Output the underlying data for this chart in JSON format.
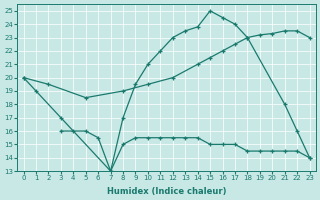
{
  "xlabel": "Humidex (Indice chaleur)",
  "xlim": [
    -0.5,
    23.5
  ],
  "ylim": [
    13,
    25.5
  ],
  "yticks": [
    13,
    14,
    15,
    16,
    17,
    18,
    19,
    20,
    21,
    22,
    23,
    24,
    25
  ],
  "xticks": [
    0,
    1,
    2,
    3,
    4,
    5,
    6,
    7,
    8,
    9,
    10,
    11,
    12,
    13,
    14,
    15,
    16,
    17,
    18,
    19,
    20,
    21,
    22,
    23
  ],
  "bg_color": "#c8e8e5",
  "grid_color": "#ffffff",
  "line_color": "#1a7a6e",
  "line1_x": [
    0,
    1,
    3,
    7,
    8,
    9,
    10,
    11,
    12,
    13,
    14,
    15,
    16,
    17,
    18,
    21,
    22,
    23
  ],
  "line1_y": [
    20,
    19,
    17,
    13,
    17,
    19.5,
    21,
    22,
    23,
    23.5,
    23.8,
    25,
    24.5,
    24,
    23,
    18,
    16,
    14
  ],
  "line2_x": [
    0,
    2,
    5,
    8,
    10,
    12,
    14,
    15,
    16,
    17,
    18,
    19,
    20,
    21,
    22,
    23
  ],
  "line2_y": [
    20,
    19.5,
    18.5,
    19,
    19.5,
    20,
    21,
    21.5,
    22,
    22.5,
    23,
    23.2,
    23.3,
    23.5,
    23.5,
    23
  ],
  "line3_x": [
    3,
    4,
    5,
    6,
    7,
    8,
    9,
    10,
    11,
    12,
    13,
    14,
    15,
    16,
    17,
    18,
    19,
    20,
    21,
    22,
    23
  ],
  "line3_y": [
    16,
    16,
    16,
    15.5,
    13,
    15,
    15.5,
    15.5,
    15.5,
    15.5,
    15.5,
    15.5,
    15,
    15,
    15,
    14.5,
    14.5,
    14.5,
    14.5,
    14.5,
    14
  ]
}
